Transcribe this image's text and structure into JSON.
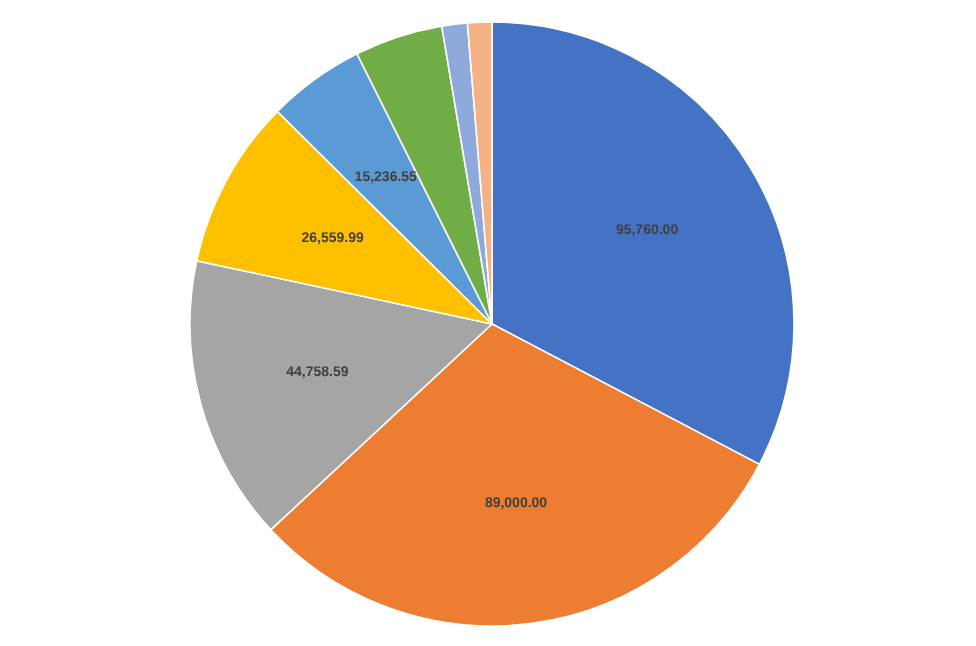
{
  "chart_data": {
    "type": "pie",
    "categories": [
      null,
      null,
      null,
      null,
      null,
      null,
      null,
      null
    ],
    "values": [
      95760,
      89000,
      44758.59,
      26559.99,
      15236.55,
      13800,
      4000,
      3800
    ],
    "colors": [
      "#4472c4",
      "#ed7d31",
      "#a5a5a5",
      "#ffc000",
      "#5b9bd5",
      "#70ad47",
      "#8ea9db",
      "#f4b183"
    ],
    "value_labels": [
      "95,760.00",
      "89,000.00",
      "44,758.59",
      "26,559.99",
      "15,236.55",
      null,
      null,
      null
    ]
  }
}
